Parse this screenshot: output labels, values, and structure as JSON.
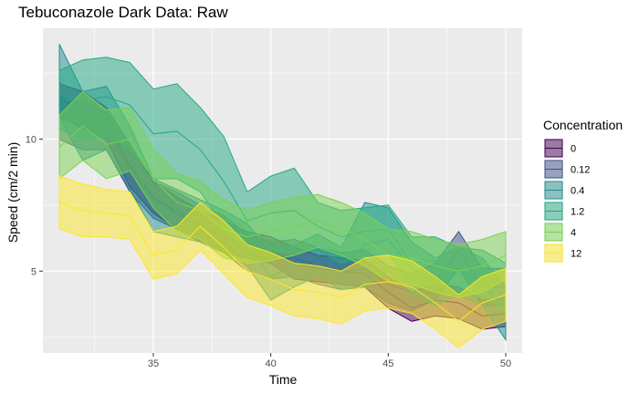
{
  "chart_data": {
    "type": "area",
    "title": "Tebuconazole Dark Data: Raw",
    "xlabel": "Time",
    "ylabel": "Speed (cm/2 min)",
    "xlim": [
      30.3,
      50.7
    ],
    "ylim": [
      1.9,
      14.2
    ],
    "x_ticks": [
      35,
      40,
      45,
      50
    ],
    "y_ticks": [
      5,
      10
    ],
    "grid": true,
    "legend": {
      "title": "Concentration",
      "position": "right"
    },
    "x": [
      31,
      32,
      33,
      34,
      35,
      36,
      37,
      38,
      39,
      40,
      41,
      42,
      43,
      44,
      45,
      46,
      47,
      48,
      49,
      50
    ],
    "series": [
      {
        "name": "0",
        "color": "#440154",
        "mean": [
          11.5,
          11.1,
          10.6,
          9.0,
          7.8,
          7.2,
          6.7,
          6.3,
          6.0,
          5.8,
          5.3,
          5.1,
          5.0,
          4.9,
          4.2,
          3.6,
          3.9,
          3.8,
          3.3,
          3.4
        ],
        "upper": [
          12.1,
          11.8,
          11.2,
          9.8,
          8.4,
          7.8,
          7.3,
          6.9,
          6.5,
          6.3,
          5.9,
          5.6,
          5.5,
          5.4,
          4.8,
          4.2,
          4.5,
          4.4,
          3.9,
          4.0
        ],
        "lower": [
          10.9,
          10.4,
          10.0,
          8.2,
          7.2,
          6.6,
          6.1,
          5.7,
          5.5,
          5.3,
          4.7,
          4.6,
          4.5,
          4.4,
          3.6,
          3.1,
          3.3,
          3.2,
          2.8,
          2.9
        ]
      },
      {
        "name": "0.12",
        "color": "#3b528b",
        "mean": [
          10.8,
          10.5,
          10.3,
          8.8,
          7.7,
          7.3,
          6.8,
          6.4,
          5.7,
          5.4,
          5.5,
          5.2,
          5.0,
          5.1,
          4.5,
          4.2,
          4.6,
          5.8,
          4.4,
          4.4
        ],
        "upper": [
          11.6,
          11.4,
          11.0,
          9.6,
          8.4,
          8.0,
          7.5,
          7.1,
          6.4,
          6.1,
          6.2,
          5.9,
          5.7,
          5.8,
          5.2,
          4.9,
          5.3,
          6.5,
          5.1,
          5.1
        ],
        "lower": [
          10.0,
          9.6,
          9.6,
          8.0,
          7.0,
          6.6,
          6.1,
          5.7,
          5.0,
          4.7,
          4.8,
          4.5,
          4.3,
          4.4,
          3.8,
          3.5,
          3.9,
          5.1,
          3.7,
          3.7
        ]
      },
      {
        "name": "0.4",
        "color": "#21908d",
        "mean": [
          12.2,
          10.5,
          10.8,
          9.3,
          7.5,
          7.2,
          6.9,
          6.5,
          6.0,
          4.8,
          5.2,
          5.6,
          5.1,
          6.0,
          6.2,
          5.1,
          4.6,
          5.0,
          4.6,
          3.4
        ],
        "upper": [
          13.6,
          11.8,
          12.0,
          10.5,
          8.5,
          8.1,
          7.7,
          7.3,
          6.8,
          5.7,
          6.0,
          6.4,
          5.9,
          7.6,
          7.4,
          6.1,
          5.5,
          5.9,
          5.5,
          4.4
        ],
        "lower": [
          10.8,
          9.2,
          9.6,
          8.1,
          6.5,
          6.3,
          6.1,
          5.7,
          5.2,
          3.9,
          4.4,
          4.8,
          4.3,
          4.4,
          5.0,
          4.1,
          3.7,
          4.1,
          3.7,
          2.4
        ]
      },
      {
        "name": "1.2",
        "color": "#22a884",
        "mean": [
          11.5,
          11.5,
          11.6,
          11.3,
          10.2,
          10.3,
          9.6,
          8.4,
          6.9,
          7.2,
          7.3,
          6.7,
          6.3,
          6.5,
          6.6,
          5.3,
          5.4,
          5.0,
          4.9,
          4.4
        ],
        "upper": [
          12.6,
          13.0,
          13.1,
          12.9,
          11.9,
          12.1,
          11.2,
          10.1,
          8.0,
          8.6,
          8.9,
          7.6,
          7.3,
          7.4,
          7.5,
          6.3,
          6.3,
          5.9,
          5.8,
          5.3
        ],
        "lower": [
          10.4,
          10.0,
          10.1,
          9.7,
          8.5,
          8.5,
          8.0,
          6.7,
          5.8,
          5.8,
          5.7,
          5.8,
          5.3,
          5.6,
          5.7,
          4.3,
          4.5,
          4.1,
          4.0,
          3.5
        ]
      },
      {
        "name": "4",
        "color": "#7ad151",
        "mean": [
          9.7,
          10.5,
          9.8,
          10.0,
          8.5,
          7.6,
          7.3,
          6.6,
          6.3,
          6.5,
          6.7,
          6.9,
          6.6,
          6.2,
          5.6,
          5.5,
          5.2,
          5.0,
          5.2,
          5.6
        ],
        "upper": [
          10.9,
          11.8,
          11.1,
          11.2,
          9.6,
          8.7,
          8.4,
          7.7,
          7.3,
          7.6,
          7.8,
          7.9,
          7.6,
          7.2,
          6.6,
          6.5,
          6.2,
          6.0,
          6.2,
          6.5
        ],
        "lower": [
          8.5,
          9.2,
          8.5,
          8.8,
          7.4,
          6.5,
          6.2,
          5.5,
          5.3,
          5.4,
          5.6,
          5.9,
          5.6,
          5.2,
          4.6,
          4.5,
          4.2,
          4.0,
          4.2,
          4.7
        ]
      },
      {
        "name": "12",
        "color": "#fde725",
        "mean": [
          7.6,
          7.3,
          7.2,
          7.1,
          5.6,
          5.8,
          6.7,
          5.9,
          5.0,
          4.7,
          4.3,
          4.2,
          4.0,
          4.5,
          4.6,
          4.4,
          3.8,
          3.1,
          3.8,
          4.1
        ],
        "upper": [
          8.6,
          8.3,
          8.1,
          8.0,
          6.5,
          6.7,
          7.6,
          6.9,
          6.0,
          5.7,
          5.3,
          5.2,
          5.0,
          5.5,
          5.6,
          5.4,
          4.8,
          4.1,
          4.8,
          5.1
        ],
        "lower": [
          6.6,
          6.3,
          6.3,
          6.2,
          4.7,
          4.9,
          5.8,
          4.9,
          4.0,
          3.7,
          3.3,
          3.2,
          3.0,
          3.5,
          3.6,
          3.4,
          2.8,
          2.1,
          2.8,
          3.1
        ]
      }
    ]
  }
}
